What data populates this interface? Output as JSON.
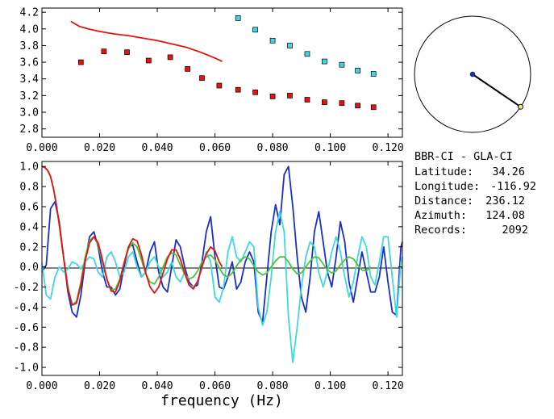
{
  "chart_data": [
    {
      "type": "scatter",
      "xlim": [
        0.0,
        0.125
      ],
      "ylim": [
        2.7,
        4.25
      ],
      "x_ticks": [
        "0.000",
        "0.020",
        "0.040",
        "0.060",
        "0.080",
        "0.100",
        "0.120"
      ],
      "y_ticks": [
        "2.8",
        "3.0",
        "3.2",
        "3.4",
        "3.6",
        "3.8",
        "4.0",
        "4.2"
      ],
      "series": [
        {
          "kind": "points",
          "color": "#e8120e",
          "x": [
            0.0135,
            0.0215,
            0.0295,
            0.037,
            0.0445,
            0.0505,
            0.0555,
            0.0615,
            0.068,
            0.074,
            0.08,
            0.086,
            0.092,
            0.098,
            0.104,
            0.1095,
            0.115
          ],
          "y": [
            3.6,
            3.73,
            3.72,
            3.62,
            3.66,
            3.52,
            3.41,
            3.32,
            3.27,
            3.24,
            3.19,
            3.2,
            3.15,
            3.12,
            3.11,
            3.08,
            3.06
          ]
        },
        {
          "kind": "points",
          "color": "#3fd8dc",
          "x": [
            0.068,
            0.074,
            0.08,
            0.086,
            0.092,
            0.098,
            0.104,
            0.1095,
            0.115
          ],
          "y": [
            4.13,
            3.99,
            3.86,
            3.8,
            3.7,
            3.61,
            3.57,
            3.5,
            3.46
          ]
        },
        {
          "kind": "line",
          "color": "#e8120e",
          "x": [
            0.01,
            0.013,
            0.016,
            0.02,
            0.025,
            0.03,
            0.035,
            0.04,
            0.045,
            0.05,
            0.055,
            0.06,
            0.0625
          ],
          "y": [
            4.09,
            4.03,
            4.0,
            3.97,
            3.94,
            3.92,
            3.89,
            3.86,
            3.82,
            3.78,
            3.72,
            3.65,
            3.61
          ]
        }
      ]
    },
    {
      "type": "line",
      "xlabel": "frequency (Hz)",
      "xlim": [
        0.0,
        0.125
      ],
      "ylim": [
        -1.08,
        1.05
      ],
      "x_ticks": [
        "0.000",
        "0.020",
        "0.040",
        "0.060",
        "0.080",
        "0.100",
        "0.120"
      ],
      "y_ticks": [
        "-1.0",
        "-0.8",
        "-0.6",
        "-0.4",
        "-0.2",
        "0.0",
        "0.2",
        "0.4",
        "0.6",
        "0.8",
        "1.0"
      ],
      "series": [
        {
          "color": "#1a2fc8",
          "x": [
            0.0,
            0.0015,
            0.003,
            0.0045,
            0.006,
            0.0075,
            0.009,
            0.0105,
            0.012,
            0.0135,
            0.015,
            0.0165,
            0.018,
            0.0195,
            0.021,
            0.0225,
            0.024,
            0.0255,
            0.027,
            0.0285,
            0.03,
            0.0315,
            0.033,
            0.0345,
            0.036,
            0.0375,
            0.039,
            0.0405,
            0.042,
            0.0435,
            0.045,
            0.0465,
            0.048,
            0.0495,
            0.051,
            0.0525,
            0.054,
            0.0555,
            0.057,
            0.0585,
            0.06,
            0.0615,
            0.063,
            0.0645,
            0.066,
            0.0675,
            0.069,
            0.0705,
            0.072,
            0.0735,
            0.075,
            0.0765,
            0.078,
            0.0795,
            0.081,
            0.0825,
            0.084,
            0.0855,
            0.087,
            0.0885,
            0.09,
            0.0915,
            0.093,
            0.0945,
            0.096,
            0.0975,
            0.099,
            0.1005,
            0.102,
            0.1035,
            0.105,
            0.1065,
            0.108,
            0.1095,
            0.111,
            0.1125,
            0.114,
            0.1155,
            0.117,
            0.1185,
            0.12,
            0.1215,
            0.123,
            0.1245,
            0.125
          ],
          "y": [
            -0.05,
            0.02,
            0.58,
            0.65,
            0.45,
            0.1,
            -0.25,
            -0.45,
            -0.5,
            -0.28,
            0.05,
            0.3,
            0.35,
            0.2,
            -0.05,
            -0.2,
            -0.2,
            -0.28,
            -0.22,
            0.0,
            0.2,
            0.22,
            0.05,
            -0.1,
            -0.05,
            0.15,
            0.25,
            -0.05,
            -0.2,
            -0.25,
            0.0,
            0.27,
            0.2,
            0.0,
            -0.15,
            -0.2,
            -0.18,
            0.05,
            0.35,
            0.5,
            0.1,
            -0.2,
            -0.22,
            -0.1,
            0.05,
            -0.22,
            -0.15,
            0.05,
            0.15,
            0.05,
            -0.45,
            -0.55,
            -0.1,
            0.35,
            0.62,
            0.42,
            0.92,
            1.0,
            0.6,
            0.1,
            -0.3,
            -0.45,
            -0.1,
            0.35,
            0.55,
            0.25,
            -0.05,
            -0.2,
            0.1,
            0.45,
            0.25,
            -0.15,
            -0.35,
            -0.1,
            0.15,
            -0.05,
            -0.25,
            -0.25,
            -0.1,
            0.2,
            -0.15,
            -0.45,
            -0.48,
            0.2,
            0.25
          ]
        },
        {
          "color": "#3fd8dc",
          "x": [
            0.0,
            0.0015,
            0.003,
            0.0045,
            0.006,
            0.0075,
            0.009,
            0.0105,
            0.012,
            0.0135,
            0.015,
            0.0165,
            0.018,
            0.0195,
            0.021,
            0.0225,
            0.024,
            0.0255,
            0.027,
            0.0285,
            0.03,
            0.0315,
            0.033,
            0.0345,
            0.036,
            0.0375,
            0.039,
            0.0405,
            0.042,
            0.0435,
            0.045,
            0.0465,
            0.048,
            0.0495,
            0.051,
            0.0525,
            0.054,
            0.0555,
            0.057,
            0.0585,
            0.06,
            0.0615,
            0.063,
            0.0645,
            0.066,
            0.0675,
            0.069,
            0.0705,
            0.072,
            0.0735,
            0.075,
            0.0765,
            0.078,
            0.0795,
            0.081,
            0.0825,
            0.084,
            0.0855,
            0.087,
            0.0885,
            0.09,
            0.0915,
            0.093,
            0.0945,
            0.096,
            0.0975,
            0.099,
            0.1005,
            0.102,
            0.1035,
            0.105,
            0.1065,
            0.108,
            0.1095,
            0.111,
            0.1125,
            0.114,
            0.1155,
            0.117,
            0.1185,
            0.12,
            0.1215,
            0.123,
            0.1245,
            0.125
          ],
          "y": [
            0.04,
            -0.28,
            -0.32,
            -0.1,
            0.0,
            -0.05,
            -0.02,
            0.05,
            0.03,
            -0.02,
            0.05,
            0.1,
            0.08,
            -0.05,
            -0.1,
            0.1,
            0.15,
            0.05,
            -0.1,
            -0.05,
            0.1,
            0.15,
            0.0,
            -0.1,
            -0.05,
            0.05,
            0.1,
            0.0,
            -0.1,
            -0.05,
            0.05,
            -0.1,
            -0.15,
            -0.05,
            -0.18,
            -0.2,
            -0.15,
            0.0,
            0.15,
            0.05,
            -0.3,
            -0.35,
            -0.2,
            0.15,
            0.3,
            0.1,
            0.05,
            0.15,
            0.25,
            0.2,
            -0.4,
            -0.58,
            -0.45,
            -0.1,
            0.35,
            0.55,
            0.35,
            -0.5,
            -0.95,
            -0.6,
            -0.2,
            0.1,
            0.25,
            0.2,
            -0.05,
            -0.2,
            -0.05,
            0.15,
            0.3,
            0.15,
            -0.1,
            -0.3,
            -0.15,
            0.1,
            0.3,
            0.2,
            -0.1,
            -0.18,
            0.05,
            0.3,
            0.3,
            -0.1,
            -0.5,
            0.05,
            0.1
          ]
        },
        {
          "color": "#4ec23a",
          "x": [
            0.0,
            0.001,
            0.002,
            0.003,
            0.004,
            0.005,
            0.006,
            0.0075,
            0.009,
            0.0105,
            0.012,
            0.0135,
            0.015,
            0.0165,
            0.018,
            0.0195,
            0.021,
            0.0225,
            0.024,
            0.0255,
            0.027,
            0.0285,
            0.03,
            0.0315,
            0.033,
            0.0345,
            0.036,
            0.0375,
            0.039,
            0.0405,
            0.042,
            0.0435,
            0.045,
            0.0465,
            0.048,
            0.0495,
            0.051,
            0.0525,
            0.054,
            0.0555,
            0.057,
            0.0585,
            0.06,
            0.0615,
            0.063,
            0.0645,
            0.066,
            0.0675,
            0.069,
            0.0705,
            0.072,
            0.0735,
            0.075,
            0.0765,
            0.078,
            0.0795,
            0.081,
            0.0825,
            0.084,
            0.0855,
            0.087,
            0.0885,
            0.09,
            0.0915,
            0.093,
            0.0945,
            0.096,
            0.0975,
            0.099,
            0.1005,
            0.102,
            0.1035,
            0.105,
            0.1065,
            0.108,
            0.1095,
            0.111,
            0.1125,
            0.114
          ],
          "y": [
            1.0,
            0.99,
            0.96,
            0.9,
            0.78,
            0.62,
            0.42,
            0.1,
            -0.2,
            -0.38,
            -0.34,
            -0.15,
            0.1,
            0.26,
            0.3,
            0.22,
            0.05,
            -0.12,
            -0.23,
            -0.22,
            -0.12,
            0.04,
            0.18,
            0.24,
            0.2,
            0.07,
            -0.07,
            -0.15,
            -0.17,
            -0.1,
            0.0,
            0.1,
            0.14,
            0.12,
            0.02,
            -0.07,
            -0.12,
            -0.1,
            -0.04,
            0.05,
            0.1,
            0.12,
            0.07,
            -0.01,
            -0.08,
            -0.1,
            -0.06,
            0.01,
            0.07,
            0.1,
            0.08,
            0.01,
            -0.05,
            -0.08,
            -0.06,
            0.0,
            0.06,
            0.1,
            0.1,
            0.05,
            -0.02,
            -0.07,
            -0.06,
            0.0,
            0.06,
            0.1,
            0.09,
            0.03,
            -0.03,
            -0.06,
            -0.04,
            0.02,
            0.07,
            0.1,
            0.08,
            0.02,
            -0.03,
            -0.04,
            0.0
          ]
        },
        {
          "color": "#e8120e",
          "x": [
            0.0,
            0.001,
            0.002,
            0.003,
            0.004,
            0.005,
            0.006,
            0.0075,
            0.009,
            0.0105,
            0.012,
            0.0135,
            0.015,
            0.0165,
            0.018,
            0.0195,
            0.021,
            0.0225,
            0.024,
            0.0255,
            0.027,
            0.0285,
            0.03,
            0.0315,
            0.033,
            0.0345,
            0.036,
            0.0375,
            0.039,
            0.0405,
            0.042,
            0.0435,
            0.045,
            0.0465,
            0.048,
            0.0495,
            0.051,
            0.0525,
            0.054,
            0.0555,
            0.057,
            0.0585,
            0.06,
            0.0615,
            0.0625
          ],
          "y": [
            1.0,
            0.99,
            0.96,
            0.9,
            0.78,
            0.62,
            0.42,
            0.1,
            -0.22,
            -0.38,
            -0.36,
            -0.18,
            0.06,
            0.24,
            0.3,
            0.24,
            0.07,
            -0.12,
            -0.24,
            -0.25,
            -0.14,
            0.04,
            0.2,
            0.28,
            0.26,
            0.12,
            -0.06,
            -0.2,
            -0.26,
            -0.2,
            -0.06,
            0.08,
            0.17,
            0.17,
            0.08,
            -0.06,
            -0.18,
            -0.22,
            -0.14,
            0.0,
            0.13,
            0.2,
            0.16,
            0.05,
            0.0
          ]
        }
      ]
    }
  ],
  "compass": {
    "azimuth_deg": 124.08,
    "center_color": "#1a2fc8",
    "end_color": "#f5f07a",
    "line_color": "#000000"
  },
  "info": {
    "title": "BBR-CI  -  GLA-CI",
    "lat_label": "Latitude:",
    "lat_value": "34.26",
    "lon_label": "Longitude:",
    "lon_value": "-116.92",
    "dist_label": "Distance:",
    "dist_value": "236.12",
    "az_label": "Azimuth:",
    "az_value": "124.08",
    "rec_label": "Records:",
    "rec_value": "2092"
  }
}
